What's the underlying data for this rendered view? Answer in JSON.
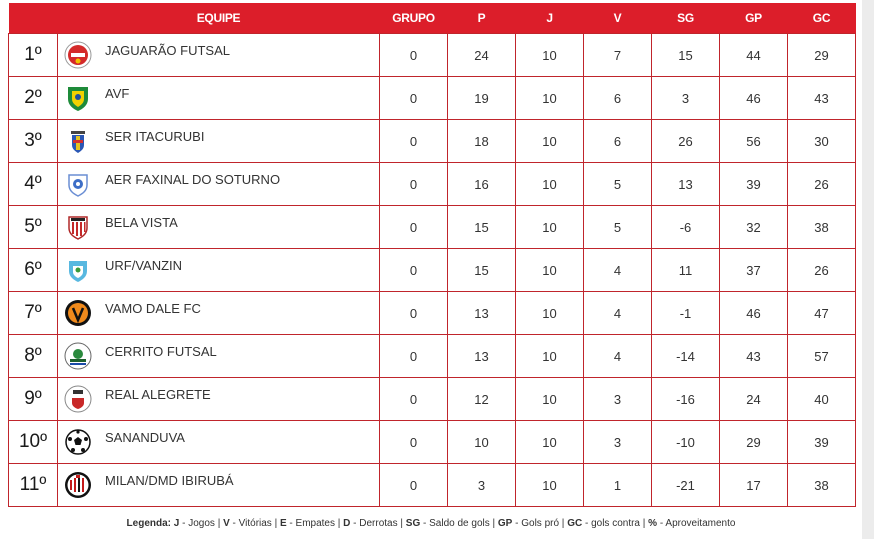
{
  "headers": {
    "equipe": "EQUIPE",
    "grupo": "GRUPO",
    "p": "P",
    "j": "J",
    "v": "V",
    "sg": "SG",
    "gp": "GP",
    "gc": "GC"
  },
  "colors": {
    "header_bg": "#dc1e2a",
    "border": "#c0252c"
  },
  "rows": [
    {
      "pos": "1º",
      "team": "JAGUARÃO FUTSAL",
      "icon": "jaguarao-badge-icon",
      "grupo": "0",
      "p": "24",
      "j": "10",
      "v": "7",
      "sg": "15",
      "gp": "44",
      "gc": "29"
    },
    {
      "pos": "2º",
      "team": "AVF",
      "icon": "avf-badge-icon",
      "grupo": "0",
      "p": "19",
      "j": "10",
      "v": "6",
      "sg": "3",
      "gp": "46",
      "gc": "43"
    },
    {
      "pos": "3º",
      "team": "SER ITACURUBI",
      "icon": "itacurubi-badge-icon",
      "grupo": "0",
      "p": "18",
      "j": "10",
      "v": "6",
      "sg": "26",
      "gp": "56",
      "gc": "30"
    },
    {
      "pos": "4º",
      "team": "AER FAXINAL DO SOTURNO",
      "icon": "faxinal-badge-icon",
      "grupo": "0",
      "p": "16",
      "j": "10",
      "v": "5",
      "sg": "13",
      "gp": "39",
      "gc": "26"
    },
    {
      "pos": "5º",
      "team": "BELA VISTA",
      "icon": "bela-vista-badge-icon",
      "grupo": "0",
      "p": "15",
      "j": "10",
      "v": "5",
      "sg": "-6",
      "gp": "32",
      "gc": "38"
    },
    {
      "pos": "6º",
      "team": "URF/VANZIN",
      "icon": "urf-vanzin-badge-icon",
      "grupo": "0",
      "p": "15",
      "j": "10",
      "v": "4",
      "sg": "11",
      "gp": "37",
      "gc": "26"
    },
    {
      "pos": "7º",
      "team": "VAMO DALE FC",
      "icon": "vamo-dale-badge-icon",
      "grupo": "0",
      "p": "13",
      "j": "10",
      "v": "4",
      "sg": "-1",
      "gp": "46",
      "gc": "47"
    },
    {
      "pos": "8º",
      "team": "CERRITO FUTSAL",
      "icon": "cerrito-badge-icon",
      "grupo": "0",
      "p": "13",
      "j": "10",
      "v": "4",
      "sg": "-14",
      "gp": "43",
      "gc": "57"
    },
    {
      "pos": "9º",
      "team": "REAL ALEGRETE",
      "icon": "real-alegrete-badge-icon",
      "grupo": "0",
      "p": "12",
      "j": "10",
      "v": "3",
      "sg": "-16",
      "gp": "24",
      "gc": "40"
    },
    {
      "pos": "10º",
      "team": "SANANDUVA",
      "icon": "sananduva-badge-icon",
      "grupo": "0",
      "p": "10",
      "j": "10",
      "v": "3",
      "sg": "-10",
      "gp": "29",
      "gc": "39"
    },
    {
      "pos": "11º",
      "team": "MILAN/DMD IBIRUBÁ",
      "icon": "milan-badge-icon",
      "grupo": "0",
      "p": "3",
      "j": "10",
      "v": "1",
      "sg": "-21",
      "gp": "17",
      "gc": "38"
    }
  ],
  "legend": {
    "title": "Legenda:",
    "items": [
      {
        "key": "J",
        "text": " - Jogos"
      },
      {
        "key": "V",
        "text": " - Vitórias"
      },
      {
        "key": "E",
        "text": " - Empates"
      },
      {
        "key": "D",
        "text": " - Derrotas"
      },
      {
        "key": "SG",
        "text": " - Saldo de gols"
      },
      {
        "key": "GP",
        "text": " - Gols pró"
      },
      {
        "key": "GC",
        "text": " - gols contra"
      },
      {
        "key": "%",
        "text": " - Aproveitamento"
      }
    ]
  }
}
